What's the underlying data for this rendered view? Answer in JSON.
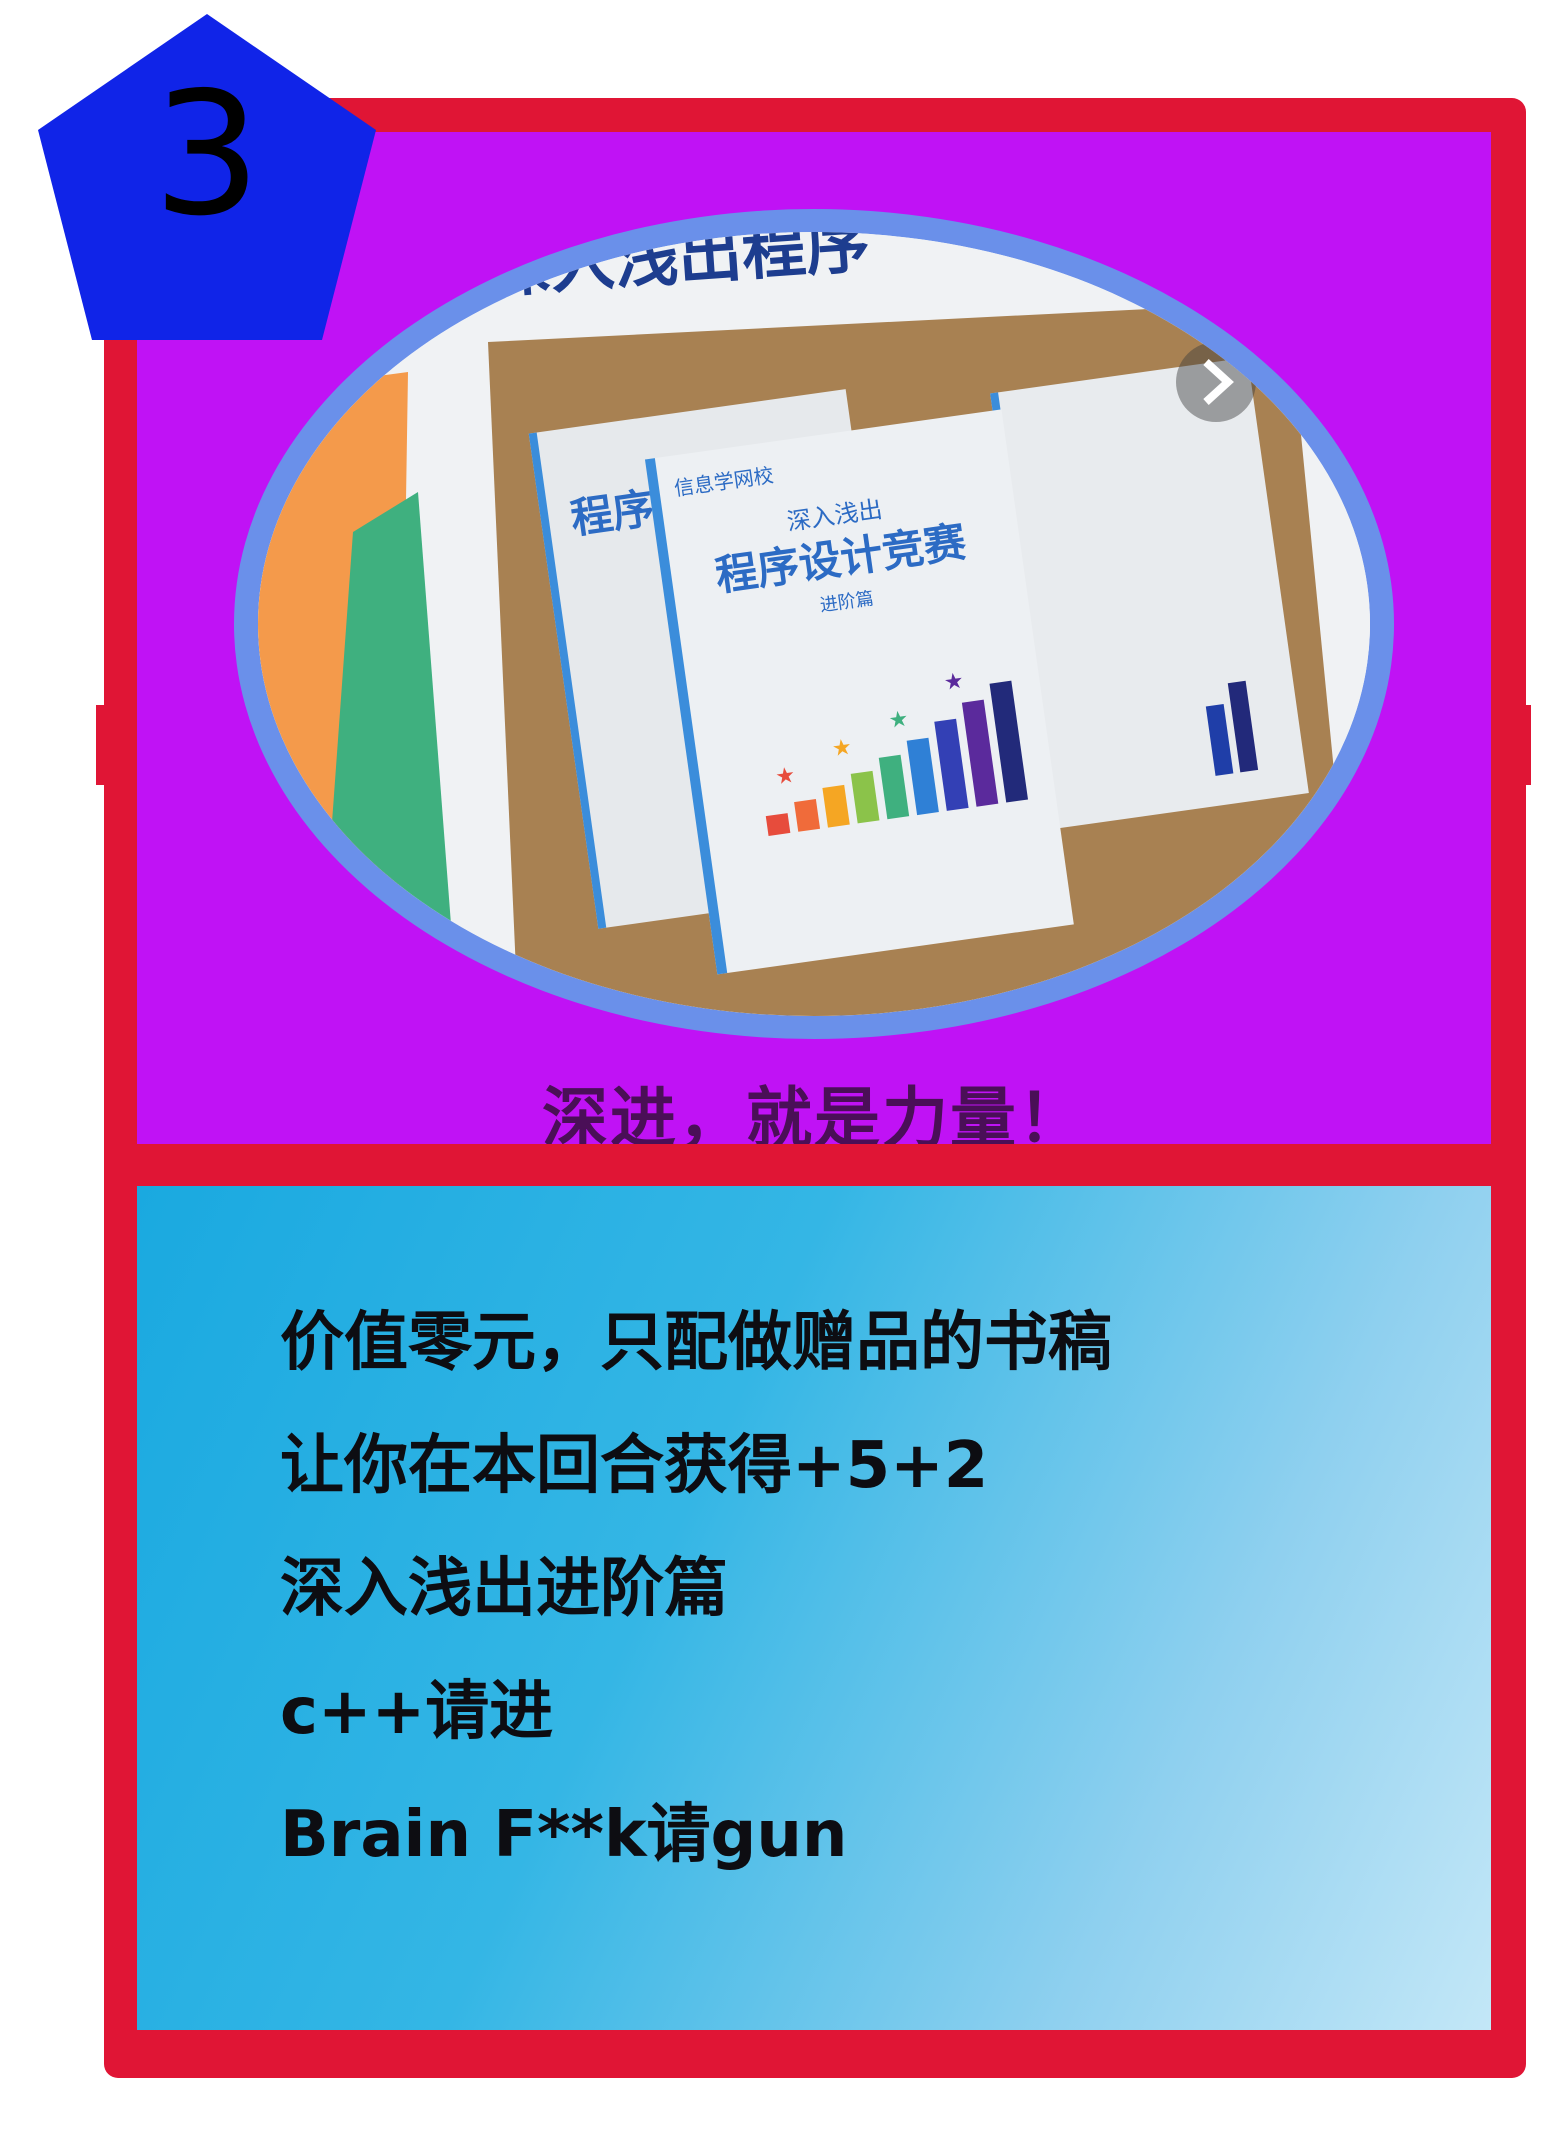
{
  "card": {
    "cost": "3",
    "subtitle": "深进，就是力量！",
    "description": [
      "价值零元，只配做赠品的书稿",
      "让你在本回合获得+5+2",
      "深入浅出进阶篇",
      "c++请进",
      "Brain F**k请gun"
    ],
    "artwork": {
      "book_brand": "信息学网校",
      "book_series": "深入浅出",
      "book_title": "程序设计竞赛",
      "book_edition": "进阶篇",
      "banner_partial": "深入浅出程序",
      "next_icon": "chevron-right-icon"
    }
  },
  "colors": {
    "frame": "#e01535",
    "top_panel": "#c012f5",
    "oval_ring": "#6a90ea",
    "badge": "#1024e8",
    "subtitle_text": "#4a0f57",
    "desc_text": "#0d0d12"
  }
}
